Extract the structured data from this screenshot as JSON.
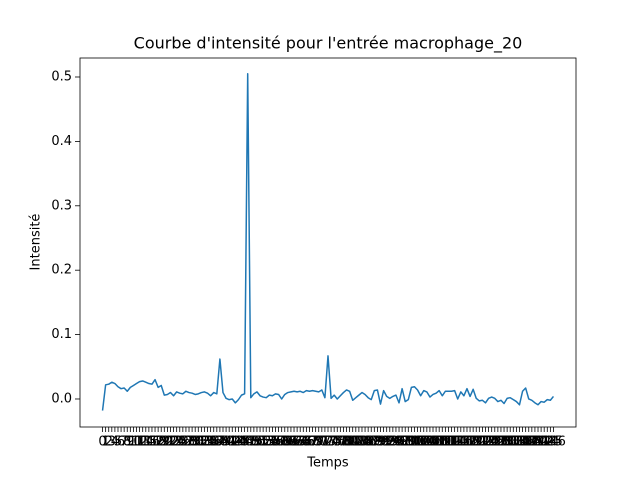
{
  "chart_data": {
    "type": "line",
    "title": "Courbe d'intensité pour l'entrée macrophage_20",
    "xlabel": "Temps",
    "ylabel": "Intensité",
    "x": [
      0,
      1,
      2,
      3,
      4,
      5,
      6,
      7,
      8,
      9,
      10,
      11,
      12,
      13,
      14,
      15,
      16,
      17,
      18,
      19,
      20,
      21,
      22,
      23,
      24,
      25,
      26,
      27,
      28,
      29,
      30,
      31,
      32,
      33,
      34,
      35,
      36,
      37,
      38,
      39,
      40,
      41,
      42,
      43,
      44,
      45,
      46,
      47,
      48,
      49,
      50,
      51,
      52,
      53,
      54,
      55,
      56,
      57,
      58,
      59,
      60,
      61,
      62,
      63,
      64,
      65,
      66,
      67,
      68,
      69,
      70,
      71,
      72,
      73,
      74,
      75,
      76,
      77,
      78,
      79,
      80,
      81,
      82,
      83,
      84,
      85,
      86,
      87,
      88,
      89,
      90,
      91,
      92,
      93,
      94,
      95,
      96,
      97,
      98,
      99,
      100,
      101,
      102,
      103,
      104,
      105,
      106,
      107,
      108,
      109,
      110,
      111,
      112,
      113,
      114,
      115,
      116,
      117,
      118,
      119,
      120,
      121,
      122,
      123,
      124,
      125,
      126,
      127,
      128,
      129,
      130,
      131,
      132,
      133,
      134,
      135,
      136,
      137,
      138,
      139,
      140,
      141,
      142,
      143,
      144,
      145,
      146
    ],
    "series": [
      {
        "name": "macrophage_20",
        "color": "#1f77b4",
        "values": [
          -0.018,
          0.022,
          0.023,
          0.026,
          0.024,
          0.019,
          0.016,
          0.017,
          0.012,
          0.018,
          0.021,
          0.024,
          0.027,
          0.028,
          0.026,
          0.024,
          0.023,
          0.03,
          0.018,
          0.021,
          0.006,
          0.007,
          0.01,
          0.005,
          0.011,
          0.009,
          0.008,
          0.012,
          0.01,
          0.009,
          0.007,
          0.008,
          0.01,
          0.011,
          0.009,
          0.005,
          0.01,
          0.008,
          0.062,
          0.01,
          0.001,
          -0.001,
          0.0,
          -0.006,
          -0.001,
          0.006,
          0.008,
          0.505,
          0.002,
          0.008,
          0.011,
          0.005,
          0.003,
          0.002,
          0.006,
          0.005,
          0.008,
          0.007,
          0.0,
          0.007,
          0.01,
          0.011,
          0.012,
          0.011,
          0.012,
          0.01,
          0.013,
          0.012,
          0.013,
          0.012,
          0.011,
          0.014,
          0.002,
          0.067,
          0.001,
          0.006,
          0.0,
          0.005,
          0.01,
          0.014,
          0.012,
          -0.002,
          0.002,
          0.006,
          0.01,
          0.007,
          0.002,
          -0.001,
          0.013,
          0.014,
          -0.008,
          0.013,
          0.004,
          0.001,
          0.004,
          0.006,
          -0.006,
          0.016,
          -0.004,
          -0.001,
          0.018,
          0.019,
          0.014,
          0.005,
          0.013,
          0.011,
          0.003,
          0.007,
          0.009,
          0.013,
          0.005,
          0.012,
          0.012,
          0.012,
          0.013,
          0.0,
          0.011,
          0.005,
          0.016,
          0.004,
          0.015,
          0.001,
          -0.003,
          -0.002,
          -0.006,
          0.001,
          0.003,
          0.001,
          -0.004,
          -0.002,
          -0.007,
          0.001,
          0.002,
          -0.001,
          -0.004,
          -0.009,
          0.012,
          0.017,
          0.0,
          -0.002,
          -0.006,
          -0.009,
          -0.004,
          -0.005,
          -0.001,
          -0.002,
          0.004
        ]
      }
    ],
    "xlim": [
      -7.3,
      153.3
    ],
    "xticks": [
      0,
      1,
      2,
      3,
      4,
      5,
      6,
      7,
      8,
      9,
      10,
      11,
      12,
      13,
      14,
      15,
      16,
      17,
      18,
      19,
      20,
      21,
      22,
      23,
      24,
      25,
      26,
      27,
      28,
      29,
      30,
      31,
      32,
      33,
      34,
      35,
      36,
      37,
      38,
      39,
      40,
      41,
      42,
      43,
      44,
      45,
      46,
      47,
      48,
      49,
      50,
      51,
      52,
      53,
      54,
      55,
      56,
      57,
      58,
      59,
      60,
      61,
      62,
      63,
      64,
      65,
      66,
      67,
      68,
      69,
      70,
      71,
      72,
      73,
      74,
      75,
      76,
      77,
      78,
      79,
      80,
      81,
      82,
      83,
      84,
      85,
      86,
      87,
      88,
      89,
      90,
      91,
      92,
      93,
      94,
      95,
      96,
      97,
      98,
      99,
      100,
      101,
      102,
      103,
      104,
      105,
      106,
      107,
      108,
      109,
      110,
      111,
      112,
      113,
      114,
      115,
      116,
      117,
      118,
      119,
      120,
      121,
      122,
      123,
      124,
      125,
      126,
      127,
      128,
      129,
      130,
      131,
      132,
      133,
      134,
      135,
      136,
      137,
      138,
      139,
      140,
      141,
      142,
      143,
      144,
      145,
      146
    ],
    "ylim": [
      -0.0435,
      0.5295
    ],
    "yticks": [
      {
        "value": 0,
        "label": "0.0"
      },
      0.1,
      0.2,
      0.3,
      0.4,
      0.5
    ],
    "grid": false
  }
}
